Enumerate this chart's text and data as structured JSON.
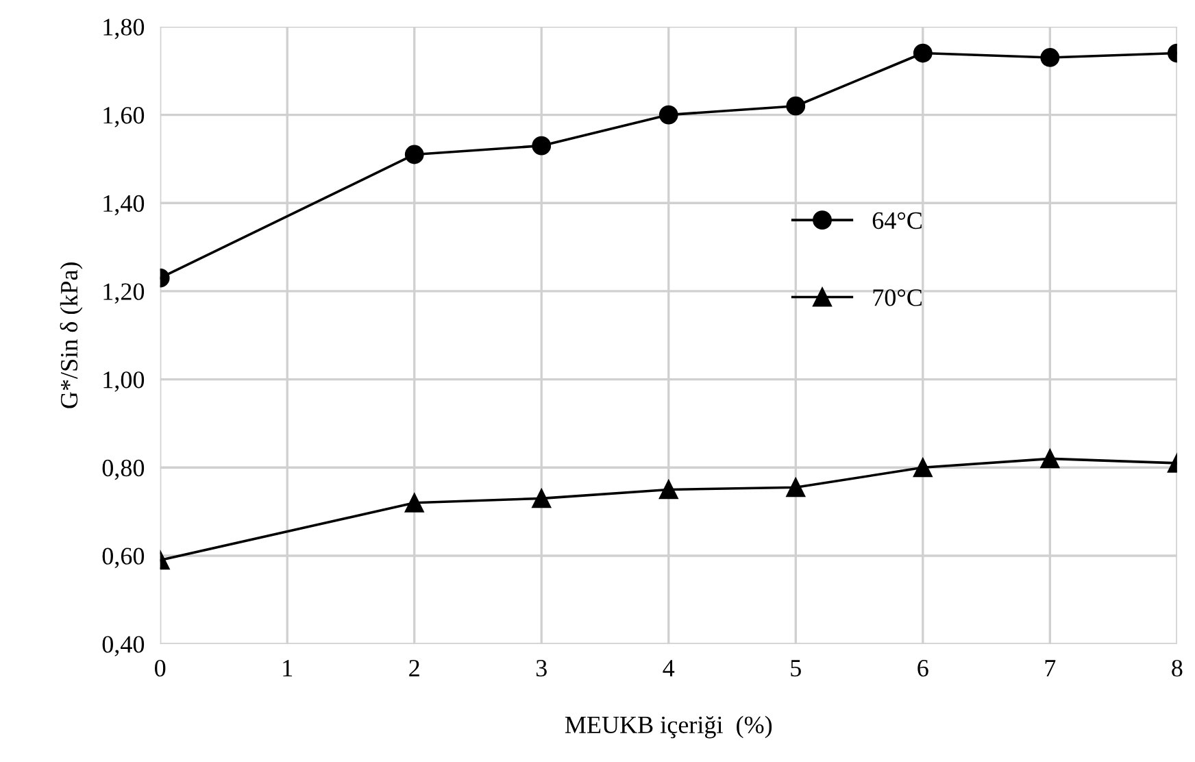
{
  "chart_data": {
    "type": "line",
    "xlabel": "MEUKB içeriği  (%)",
    "ylabel": "G*/Sin δ (kPa)",
    "x": [
      0,
      2,
      3,
      4,
      5,
      6,
      7,
      8
    ],
    "series": [
      {
        "name": "64°C",
        "color": "#000000",
        "marker": "circle",
        "values": [
          1.23,
          1.51,
          1.53,
          1.6,
          1.62,
          1.74,
          1.73,
          1.74
        ]
      },
      {
        "name": "70°C",
        "color": "#000000",
        "marker": "triangle",
        "values": [
          0.59,
          0.72,
          0.73,
          0.75,
          0.755,
          0.8,
          0.82,
          0.81
        ]
      }
    ],
    "xlim": [
      0,
      8
    ],
    "xticks": [
      0,
      1,
      2,
      3,
      4,
      5,
      6,
      7,
      8
    ],
    "ylim": [
      0.4,
      1.8
    ],
    "yticks": [
      {
        "value": 0.4,
        "label": "0,40"
      },
      {
        "value": 0.6,
        "label": "0,60"
      },
      {
        "value": 0.8,
        "label": "0,80"
      },
      {
        "value": 1.0,
        "label": "1,00"
      },
      {
        "value": 1.2,
        "label": "1,20"
      },
      {
        "value": 1.4,
        "label": "1,40"
      },
      {
        "value": 1.6,
        "label": "1,60"
      },
      {
        "value": 1.8,
        "label": "1,80"
      }
    ],
    "grid": true,
    "legend": "right",
    "line_style": "solid"
  }
}
